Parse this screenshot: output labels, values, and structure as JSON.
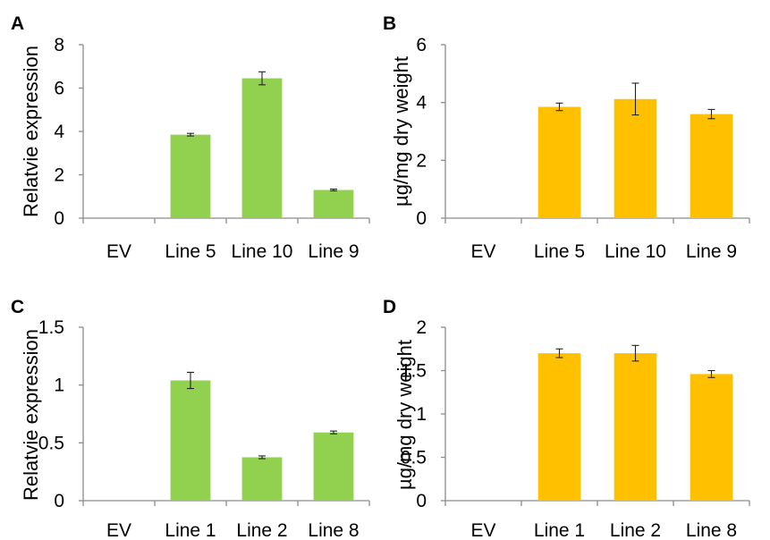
{
  "chart_data": [
    {
      "panel": "A",
      "type": "bar",
      "ylabel": "Relatvie expression",
      "categories": [
        "EV",
        "Line 5",
        "Line 10",
        "Line 9"
      ],
      "values": [
        0,
        3.85,
        6.45,
        1.3
      ],
      "errors": [
        0,
        0.06,
        0.3,
        0.04
      ],
      "ylim": [
        0,
        8
      ],
      "yticks": [
        "0",
        "2",
        "4",
        "6",
        "8"
      ],
      "color": "#92d050"
    },
    {
      "panel": "B",
      "type": "bar",
      "ylabel": "µg/mg dry weight",
      "categories": [
        "EV",
        "Line 5",
        "Line 10",
        "Line 9"
      ],
      "values": [
        0,
        3.85,
        4.12,
        3.6
      ],
      "errors": [
        0,
        0.13,
        0.55,
        0.16
      ],
      "ylim": [
        0,
        6
      ],
      "yticks": [
        "0",
        "2",
        "4",
        "6"
      ],
      "color": "#ffc000"
    },
    {
      "panel": "C",
      "type": "bar",
      "ylabel": "Relatvie expression",
      "categories": [
        "EV",
        "Line 1",
        "Line 2",
        "Line 8"
      ],
      "values": [
        0,
        1.04,
        0.375,
        0.59
      ],
      "errors": [
        0,
        0.07,
        0.012,
        0.012
      ],
      "ylim": [
        0,
        1.5
      ],
      "yticks": [
        "0",
        "0.5",
        "1",
        "1.5"
      ],
      "color": "#92d050"
    },
    {
      "panel": "D",
      "type": "bar",
      "ylabel": "µg/mg dry weight",
      "categories": [
        "EV",
        "Line 1",
        "Line 2",
        "Line 8"
      ],
      "values": [
        0,
        1.7,
        1.7,
        1.46
      ],
      "errors": [
        0,
        0.05,
        0.09,
        0.04
      ],
      "ylim": [
        0,
        2
      ],
      "yticks": [
        "0",
        "0.5",
        "1",
        "1.5",
        "2"
      ],
      "color": "#ffc000"
    }
  ]
}
